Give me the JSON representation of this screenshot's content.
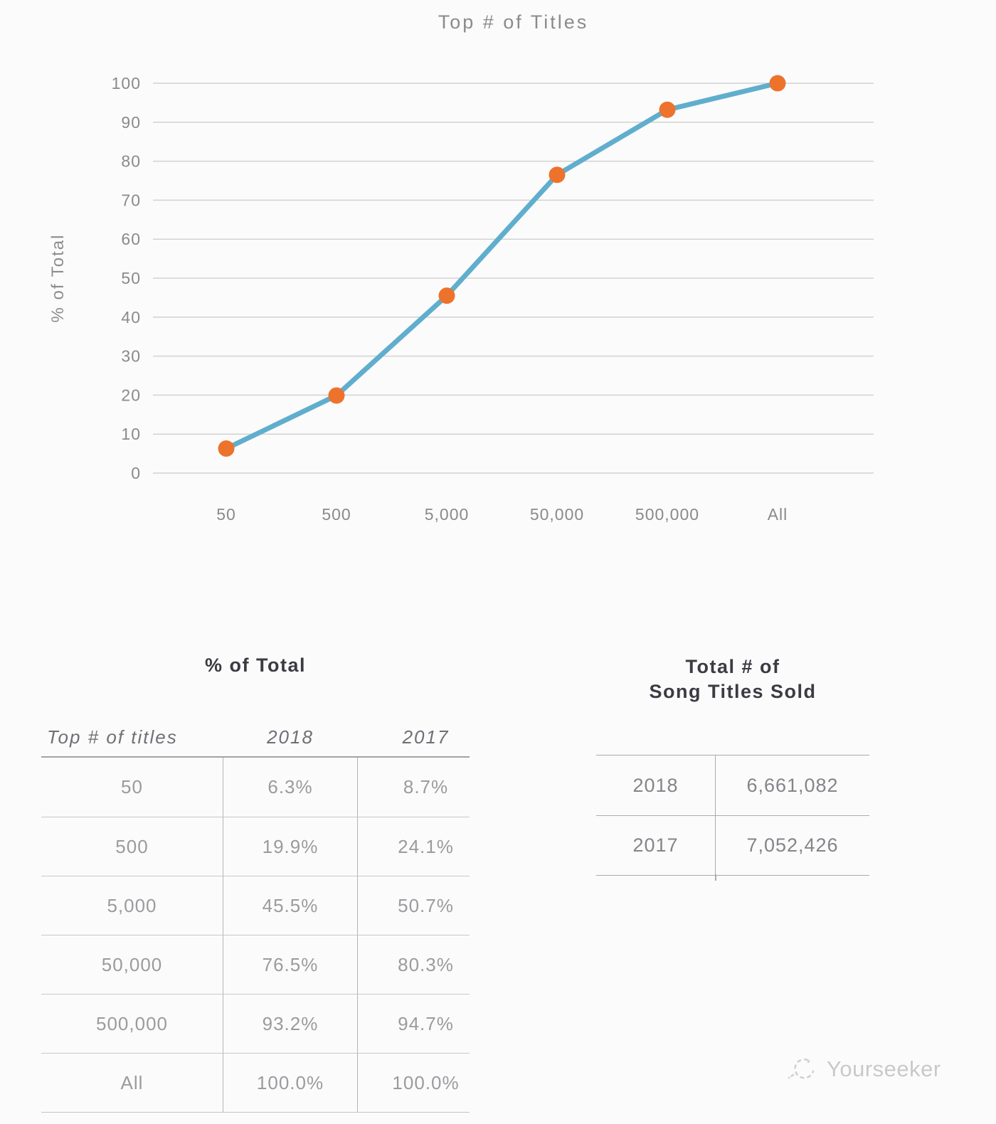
{
  "chart_data": {
    "type": "line",
    "title": "Top # of Titles",
    "ylabel": "% of Total",
    "xlabel": "",
    "ylim": [
      0,
      100
    ],
    "y_tick_step": 10,
    "grid": "horizontal",
    "legend": "none",
    "categories": [
      "50",
      "500",
      "5,000",
      "50,000",
      "500,000",
      "All"
    ],
    "series": [
      {
        "name": "2018",
        "values": [
          6.3,
          19.9,
          45.5,
          76.5,
          93.2,
          100.0
        ]
      }
    ],
    "line_color": "#60AECD",
    "marker_color": "#ED722C",
    "gridline_color": "#d2d2d2",
    "axis_text_color": "#8a8a8a"
  },
  "percent_table": {
    "title": "% of Total",
    "columns": [
      "Top # of titles",
      "2018",
      "2017"
    ],
    "rows": [
      {
        "label": "50",
        "y2018": "6.3%",
        "y2017": "8.7%"
      },
      {
        "label": "500",
        "y2018": "19.9%",
        "y2017": "24.1%"
      },
      {
        "label": "5,000",
        "y2018": "45.5%",
        "y2017": "50.7%"
      },
      {
        "label": "50,000",
        "y2018": "76.5%",
        "y2017": "80.3%"
      },
      {
        "label": "500,000",
        "y2018": "93.2%",
        "y2017": "94.7%"
      },
      {
        "label": "All",
        "y2018": "100.0%",
        "y2017": "100.0%"
      }
    ]
  },
  "totals_table": {
    "title_line1": "Total # of",
    "title_line2": "Song Titles Sold",
    "rows": [
      {
        "label": "2018",
        "value": "6,661,082"
      },
      {
        "label": "2017",
        "value": "7,052,426"
      }
    ]
  },
  "watermark": {
    "text": "Yourseeker"
  }
}
